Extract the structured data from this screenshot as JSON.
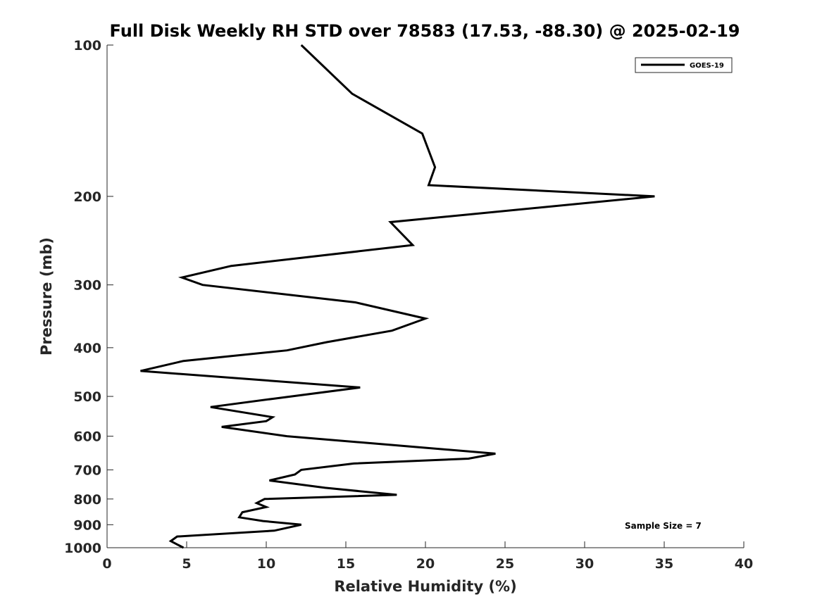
{
  "chart_data": {
    "type": "line",
    "title": "Full Disk Weekly RH STD over 78583 (17.53, -88.30) @ 2025-02-19",
    "xlabel": "Relative Humidity (%)",
    "ylabel": "Pressure (mb)",
    "xlim": [
      0,
      40
    ],
    "ylim": [
      100,
      1000
    ],
    "y_scale": "log",
    "y_reversed": true,
    "x_ticks": [
      0,
      5,
      10,
      15,
      20,
      25,
      30,
      35,
      40
    ],
    "y_ticks": [
      100,
      200,
      300,
      400,
      500,
      600,
      700,
      800,
      900,
      1000
    ],
    "grid": false,
    "legend_position": "top-right",
    "annotation": "Sample Size = 7",
    "series": [
      {
        "name": "GOES-19",
        "color": "#000000",
        "points": [
          [
            12.2,
            100
          ],
          [
            15.4,
            125
          ],
          [
            19.8,
            150
          ],
          [
            20.6,
            175
          ],
          [
            20.2,
            190
          ],
          [
            34.4,
            200
          ],
          [
            17.8,
            225
          ],
          [
            19.2,
            250
          ],
          [
            7.8,
            275
          ],
          [
            4.7,
            290
          ],
          [
            6.0,
            300
          ],
          [
            15.6,
            325
          ],
          [
            20.0,
            350
          ],
          [
            17.9,
            370
          ],
          [
            13.8,
            390
          ],
          [
            11.3,
            405
          ],
          [
            4.8,
            425
          ],
          [
            2.1,
            445
          ],
          [
            15.9,
            480
          ],
          [
            10.5,
            505
          ],
          [
            6.5,
            525
          ],
          [
            10.4,
            550
          ],
          [
            10.0,
            560
          ],
          [
            7.2,
            575
          ],
          [
            11.3,
            600
          ],
          [
            18.0,
            625
          ],
          [
            24.4,
            650
          ],
          [
            22.7,
            665
          ],
          [
            15.5,
            680
          ],
          [
            12.2,
            700
          ],
          [
            11.8,
            715
          ],
          [
            10.2,
            735
          ],
          [
            13.7,
            760
          ],
          [
            18.2,
            785
          ],
          [
            9.9,
            800
          ],
          [
            9.4,
            815
          ],
          [
            10.0,
            830
          ],
          [
            8.5,
            850
          ],
          [
            8.3,
            870
          ],
          [
            9.8,
            885
          ],
          [
            12.2,
            900
          ],
          [
            10.5,
            925
          ],
          [
            4.4,
            950
          ],
          [
            4.0,
            970
          ],
          [
            4.8,
            1000
          ]
        ]
      }
    ]
  }
}
